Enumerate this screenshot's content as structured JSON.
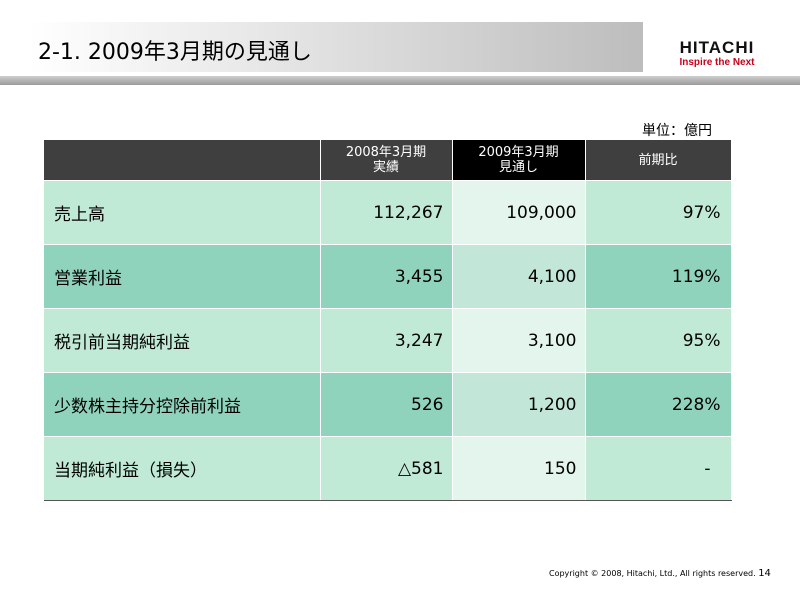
{
  "header": {
    "title": "2-1. 2009年3月期の見通し",
    "logo_name": "HITACHI",
    "logo_tagline": "Inspire the Next"
  },
  "unit_label": "単位：億円",
  "table": {
    "columns": [
      {
        "line1": "2008年3月期",
        "line2": "実績"
      },
      {
        "line1": "2009年3月期",
        "line2": "見通し"
      },
      {
        "line1": "前期比",
        "line2": ""
      }
    ],
    "rows": [
      {
        "label": "売上高",
        "actual_2008": "112,267",
        "forecast_2009": "109,000",
        "yoy": "97%"
      },
      {
        "label": "営業利益",
        "actual_2008": "3,455",
        "forecast_2009": "4,100",
        "yoy": "119%"
      },
      {
        "label": "税引前当期純利益",
        "actual_2008": "3,247",
        "forecast_2009": "3,100",
        "yoy": "95%"
      },
      {
        "label": "少数株主持分控除前利益",
        "actual_2008": "526",
        "forecast_2009": "1,200",
        "yoy": "228%"
      },
      {
        "label": "当期純利益（損失）",
        "actual_2008": "△581",
        "forecast_2009": "150",
        "yoy": "-"
      }
    ]
  },
  "footer": {
    "copyright": "Copyright © 2008, Hitachi, Ltd., All rights reserved.",
    "page_number": "14"
  },
  "colors": {
    "row_light": "#c0e9d6",
    "row_dark": "#8fd3bc",
    "header_bg": "#3f3f3f",
    "header_highlight": "#000000",
    "logo_accent": "#c4001a"
  }
}
